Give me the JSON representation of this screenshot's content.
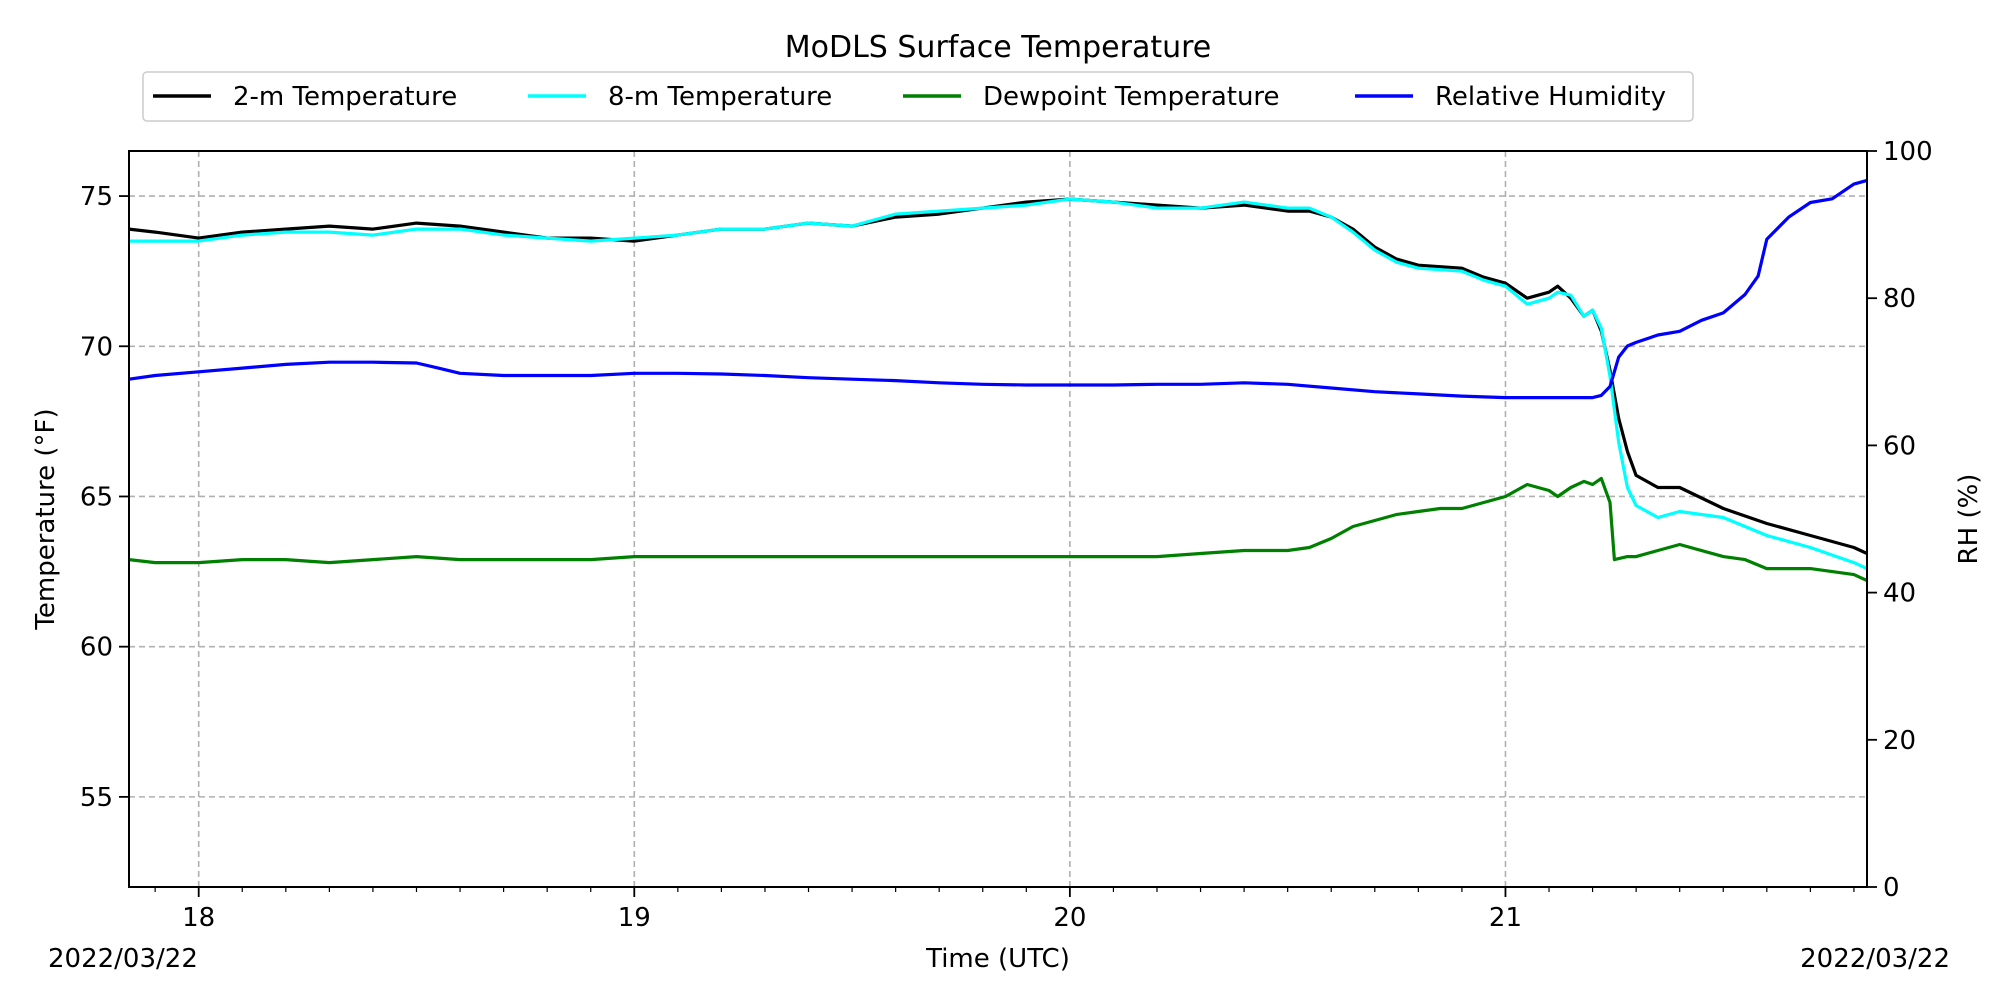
{
  "chart_data": {
    "type": "line",
    "title": "MoDLS Surface Temperature",
    "xlabel": "Time (UTC)",
    "ylabel": "Temperature ($^\\circ$F)",
    "ylabel_display": "Temperature (°F)",
    "y2label": "RH (%)",
    "date_left": "2022/03/22",
    "date_right": "2022/03/22",
    "xlim": [
      17.84,
      21.83
    ],
    "ylim": [
      52,
      76.5
    ],
    "y2lim": [
      0,
      100
    ],
    "xticks": [
      18,
      19,
      20,
      21
    ],
    "xtick_labels": [
      "18",
      "19",
      "20",
      "21"
    ],
    "yticks": [
      55,
      60,
      65,
      70,
      75
    ],
    "ytick_labels": [
      "55",
      "60",
      "65",
      "70",
      "75"
    ],
    "y2ticks": [
      0,
      20,
      40,
      60,
      80,
      100
    ],
    "y2tick_labels": [
      "0",
      "20",
      "40",
      "60",
      "80",
      "100"
    ],
    "grid": true,
    "legend_position": "top",
    "series": [
      {
        "name": "2-m Temperature",
        "color": "#000000",
        "axis": "left",
        "x": [
          17.84,
          17.9,
          17.95,
          18.0,
          18.1,
          18.2,
          18.3,
          18.4,
          18.5,
          18.6,
          18.7,
          18.8,
          18.9,
          19.0,
          19.1,
          19.2,
          19.3,
          19.4,
          19.5,
          19.6,
          19.7,
          19.8,
          19.9,
          20.0,
          20.1,
          20.2,
          20.3,
          20.4,
          20.5,
          20.55,
          20.6,
          20.65,
          20.7,
          20.75,
          20.8,
          20.9,
          20.95,
          21.0,
          21.05,
          21.1,
          21.12,
          21.15,
          21.18,
          21.2,
          21.22,
          21.24,
          21.26,
          21.28,
          21.3,
          21.35,
          21.4,
          21.5,
          21.6,
          21.7,
          21.8,
          21.83
        ],
        "y": [
          73.9,
          73.8,
          73.7,
          73.6,
          73.8,
          73.9,
          74.0,
          73.9,
          74.1,
          74.0,
          73.8,
          73.6,
          73.6,
          73.5,
          73.7,
          73.9,
          73.9,
          74.1,
          74.0,
          74.3,
          74.4,
          74.6,
          74.8,
          74.9,
          74.8,
          74.7,
          74.6,
          74.7,
          74.5,
          74.5,
          74.3,
          73.9,
          73.3,
          72.9,
          72.7,
          72.6,
          72.3,
          72.1,
          71.6,
          71.8,
          72.0,
          71.6,
          71.0,
          71.2,
          70.5,
          69.2,
          67.6,
          66.5,
          65.7,
          65.3,
          65.3,
          64.6,
          64.1,
          63.7,
          63.3,
          63.1
        ]
      },
      {
        "name": "8-m Temperature",
        "color": "#00FFFF",
        "axis": "left",
        "x": [
          17.84,
          17.9,
          18.0,
          18.1,
          18.2,
          18.3,
          18.4,
          18.5,
          18.6,
          18.7,
          18.8,
          18.9,
          19.0,
          19.1,
          19.2,
          19.3,
          19.4,
          19.5,
          19.6,
          19.7,
          19.8,
          19.9,
          20.0,
          20.1,
          20.2,
          20.3,
          20.4,
          20.5,
          20.55,
          20.6,
          20.65,
          20.7,
          20.75,
          20.8,
          20.9,
          20.95,
          21.0,
          21.05,
          21.1,
          21.12,
          21.15,
          21.18,
          21.2,
          21.22,
          21.24,
          21.26,
          21.28,
          21.3,
          21.35,
          21.4,
          21.5,
          21.6,
          21.7,
          21.8,
          21.83
        ],
        "y": [
          73.5,
          73.5,
          73.5,
          73.7,
          73.8,
          73.8,
          73.7,
          73.9,
          73.9,
          73.7,
          73.6,
          73.5,
          73.6,
          73.7,
          73.9,
          73.9,
          74.1,
          74.0,
          74.4,
          74.5,
          74.6,
          74.7,
          74.9,
          74.8,
          74.6,
          74.6,
          74.8,
          74.6,
          74.6,
          74.3,
          73.8,
          73.2,
          72.8,
          72.6,
          72.5,
          72.2,
          72.0,
          71.4,
          71.6,
          71.8,
          71.7,
          71.0,
          71.2,
          70.6,
          69.0,
          66.8,
          65.3,
          64.7,
          64.3,
          64.5,
          64.3,
          63.7,
          63.3,
          62.8,
          62.6
        ]
      },
      {
        "name": "Dewpoint Temperature",
        "color": "#008000",
        "axis": "left",
        "x": [
          17.84,
          17.9,
          18.0,
          18.1,
          18.2,
          18.3,
          18.4,
          18.5,
          18.6,
          18.7,
          18.8,
          18.9,
          19.0,
          19.2,
          19.4,
          19.6,
          19.8,
          20.0,
          20.2,
          20.3,
          20.4,
          20.5,
          20.55,
          20.6,
          20.65,
          20.7,
          20.75,
          20.8,
          20.85,
          20.9,
          20.95,
          21.0,
          21.05,
          21.1,
          21.12,
          21.15,
          21.18,
          21.2,
          21.22,
          21.24,
          21.25,
          21.28,
          21.3,
          21.35,
          21.4,
          21.5,
          21.55,
          21.6,
          21.7,
          21.8,
          21.83
        ],
        "y": [
          62.9,
          62.8,
          62.8,
          62.9,
          62.9,
          62.8,
          62.9,
          63.0,
          62.9,
          62.9,
          62.9,
          62.9,
          63.0,
          63.0,
          63.0,
          63.0,
          63.0,
          63.0,
          63.0,
          63.1,
          63.2,
          63.2,
          63.3,
          63.6,
          64.0,
          64.2,
          64.4,
          64.5,
          64.6,
          64.6,
          64.8,
          65.0,
          65.4,
          65.2,
          65.0,
          65.3,
          65.5,
          65.4,
          65.6,
          64.8,
          62.9,
          63.0,
          63.0,
          63.2,
          63.4,
          63.0,
          62.9,
          62.6,
          62.6,
          62.4,
          62.2
        ]
      },
      {
        "name": "Relative Humidity",
        "color": "#0000FF",
        "axis": "right",
        "x": [
          17.84,
          17.9,
          18.0,
          18.1,
          18.2,
          18.3,
          18.4,
          18.5,
          18.55,
          18.6,
          18.7,
          18.8,
          18.9,
          19.0,
          19.1,
          19.2,
          19.3,
          19.4,
          19.5,
          19.6,
          19.7,
          19.8,
          19.9,
          20.0,
          20.1,
          20.2,
          20.3,
          20.4,
          20.5,
          20.6,
          20.7,
          20.8,
          20.9,
          21.0,
          21.1,
          21.2,
          21.22,
          21.24,
          21.26,
          21.28,
          21.3,
          21.35,
          21.4,
          21.45,
          21.5,
          21.55,
          21.58,
          21.6,
          21.65,
          21.7,
          21.75,
          21.8,
          21.83
        ],
        "y": [
          69.0,
          69.5,
          70.0,
          70.5,
          71.0,
          71.3,
          71.3,
          71.2,
          70.5,
          69.8,
          69.5,
          69.5,
          69.5,
          69.8,
          69.8,
          69.7,
          69.5,
          69.2,
          69.0,
          68.8,
          68.5,
          68.3,
          68.2,
          68.2,
          68.2,
          68.3,
          68.3,
          68.5,
          68.3,
          67.8,
          67.3,
          67.0,
          66.7,
          66.5,
          66.5,
          66.5,
          66.8,
          68.0,
          72.0,
          73.5,
          74.0,
          75.0,
          75.5,
          77.0,
          78.0,
          80.5,
          83.0,
          88.0,
          91.0,
          93.0,
          93.5,
          95.5,
          96.0
        ]
      }
    ]
  }
}
